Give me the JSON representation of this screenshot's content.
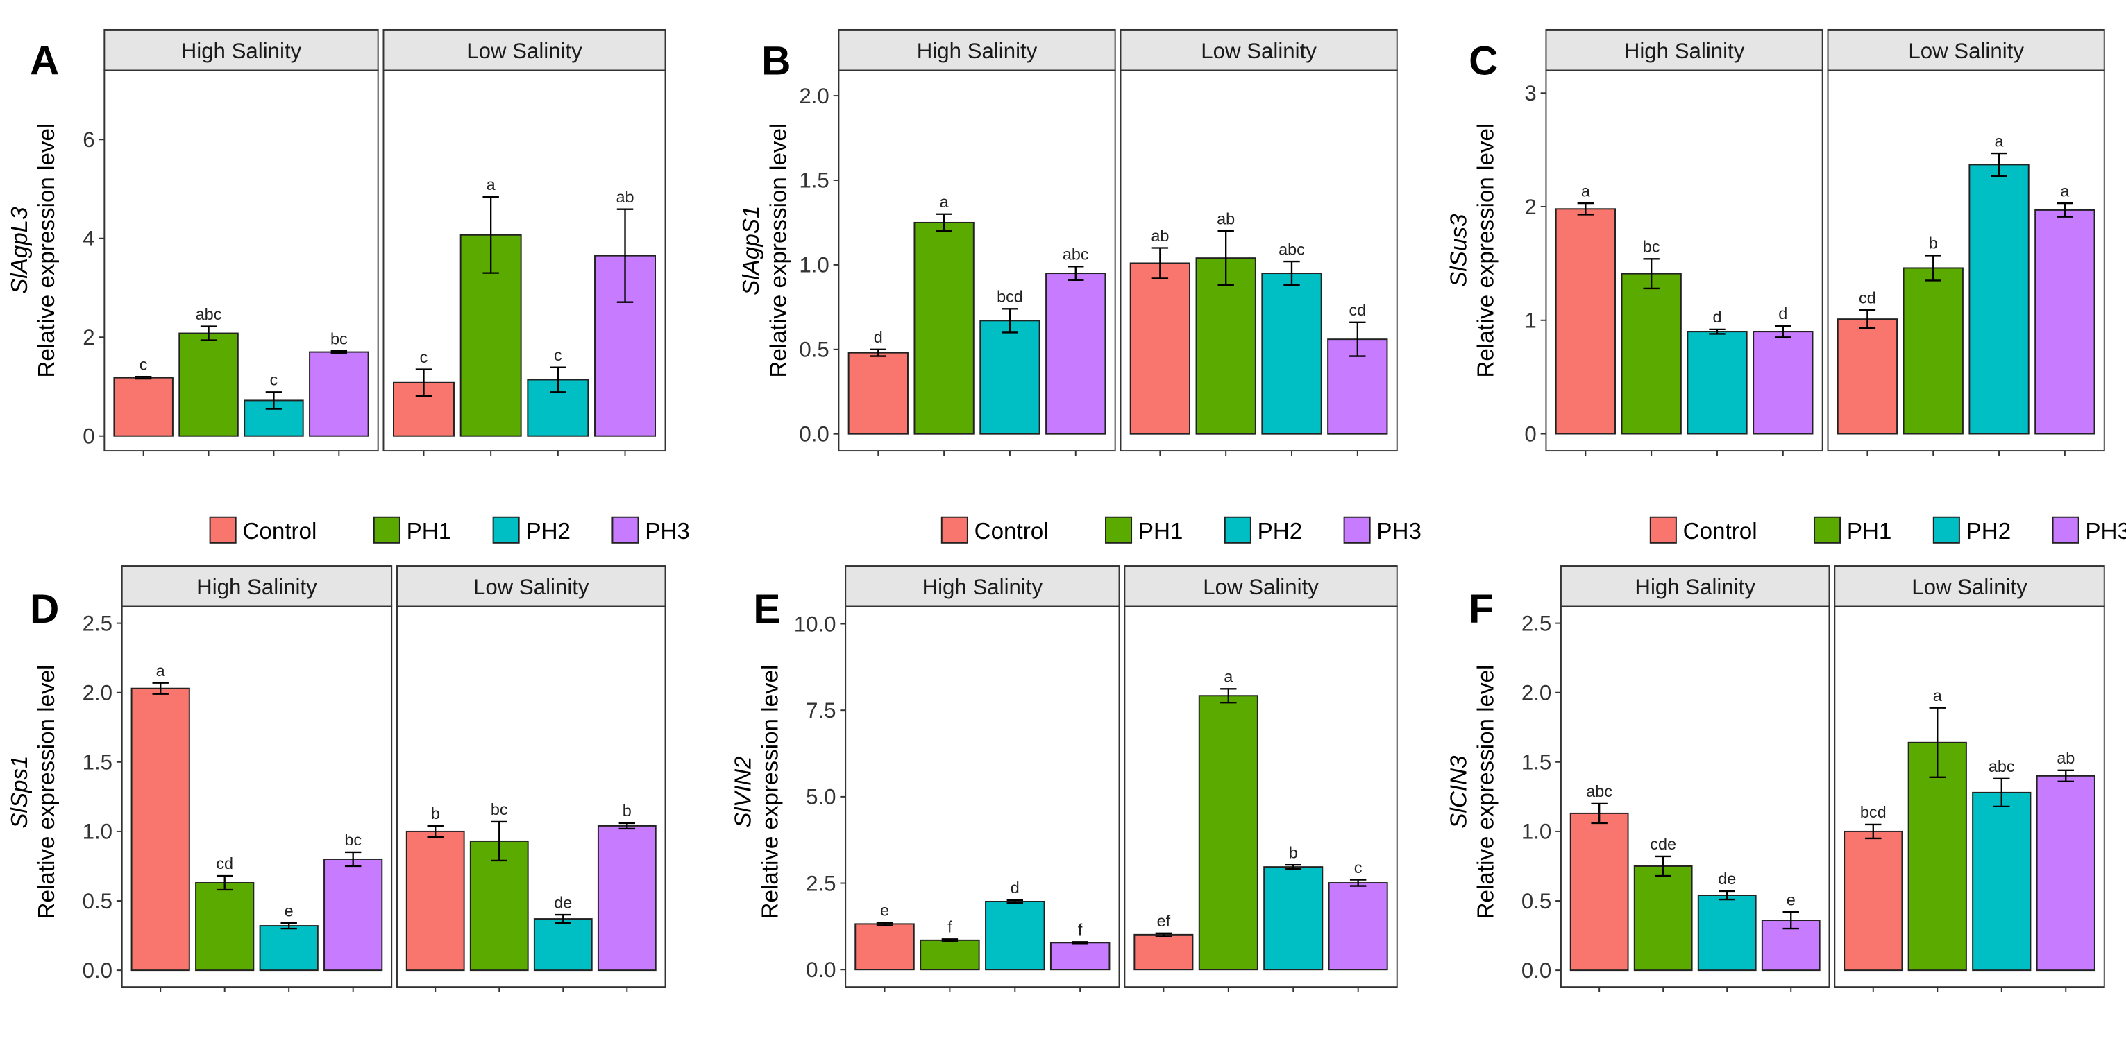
{
  "figure": {
    "ylabel": "Relative expression level",
    "strips": [
      "High Salinity",
      "Low Salinity"
    ],
    "legend": [
      "Control",
      "PH1",
      "PH2",
      "PH3"
    ],
    "colors": {
      "Control": "#F8766D",
      "PH1": "#5BAA00",
      "PH2": "#00BFC4",
      "PH3": "#C77CFF",
      "strip_bg": "#E5E5E5"
    }
  },
  "chart_data": [
    {
      "type": "bar",
      "letter": "A",
      "gene": "SlAgpL3",
      "gene_prefix": "Sl",
      "gene_suffix": "AgpL3",
      "ylabel": "Relative expression level",
      "ylim": [
        -0.3,
        7.4
      ],
      "ticks": [
        "0",
        "2",
        "4",
        "6"
      ],
      "tick_values": [
        0,
        2,
        4,
        6
      ],
      "facets": [
        "High Salinity",
        "Low Salinity"
      ],
      "categories": [
        "Control",
        "PH1",
        "PH2",
        "PH3"
      ],
      "series": [
        {
          "facet": "High Salinity",
          "values": [
            1.18,
            2.08,
            0.72,
            1.7
          ],
          "errors": [
            0.02,
            0.14,
            0.17,
            0.02
          ],
          "labels": [
            "c",
            "abc",
            "c",
            "bc"
          ]
        },
        {
          "facet": "Low Salinity",
          "values": [
            1.08,
            4.07,
            1.14,
            3.65
          ],
          "errors": [
            0.27,
            0.77,
            0.25,
            0.94
          ],
          "labels": [
            "c",
            "a",
            "c",
            "ab"
          ]
        }
      ]
    },
    {
      "type": "bar",
      "letter": "B",
      "gene": "SlAgpS1",
      "gene_prefix": "Sl",
      "gene_suffix": "AgpS1",
      "ylabel": "Relative expression level",
      "ylim": [
        -0.1,
        2.15
      ],
      "ticks": [
        "0.0",
        "0.5",
        "1.0",
        "1.5",
        "2.0"
      ],
      "tick_values": [
        0,
        0.5,
        1,
        1.5,
        2
      ],
      "facets": [
        "High Salinity",
        "Low Salinity"
      ],
      "categories": [
        "Control",
        "PH1",
        "PH2",
        "PH3"
      ],
      "series": [
        {
          "facet": "High Salinity",
          "values": [
            0.48,
            1.25,
            0.67,
            0.95
          ],
          "errors": [
            0.02,
            0.05,
            0.07,
            0.04
          ],
          "labels": [
            "d",
            "a",
            "bcd",
            "abc"
          ]
        },
        {
          "facet": "Low Salinity",
          "values": [
            1.01,
            1.04,
            0.95,
            0.56
          ],
          "errors": [
            0.09,
            0.16,
            0.07,
            0.1
          ],
          "labels": [
            "ab",
            "ab",
            "abc",
            "cd"
          ]
        }
      ]
    },
    {
      "type": "bar",
      "letter": "C",
      "gene": "SlSus3",
      "gene_prefix": "Sl",
      "gene_suffix": "Sus3",
      "ylabel": "Relative expression level",
      "ylim": [
        -0.15,
        3.2
      ],
      "ticks": [
        "0",
        "1",
        "2",
        "3"
      ],
      "tick_values": [
        0,
        1,
        2,
        3
      ],
      "facets": [
        "High Salinity",
        "Low Salinity"
      ],
      "categories": [
        "Control",
        "PH1",
        "PH2",
        "PH3"
      ],
      "series": [
        {
          "facet": "High Salinity",
          "values": [
            1.98,
            1.41,
            0.9,
            0.9
          ],
          "errors": [
            0.05,
            0.13,
            0.02,
            0.05
          ],
          "labels": [
            "a",
            "bc",
            "d",
            "d"
          ]
        },
        {
          "facet": "Low Salinity",
          "values": [
            1.01,
            1.46,
            2.37,
            1.97
          ],
          "errors": [
            0.08,
            0.11,
            0.1,
            0.06
          ],
          "labels": [
            "cd",
            "b",
            "a",
            "a"
          ]
        }
      ]
    },
    {
      "type": "bar",
      "letter": "D",
      "gene": "SlSps1",
      "gene_prefix": "Sl",
      "gene_suffix": "Sps1",
      "ylabel": "Relative expression level",
      "ylim": [
        -0.12,
        2.62
      ],
      "ticks": [
        "0.0",
        "0.5",
        "1.0",
        "1.5",
        "2.0",
        "2.5"
      ],
      "tick_values": [
        0,
        0.5,
        1,
        1.5,
        2,
        2.5
      ],
      "facets": [
        "High Salinity",
        "Low Salinity"
      ],
      "categories": [
        "Control",
        "PH1",
        "PH2",
        "PH3"
      ],
      "series": [
        {
          "facet": "High Salinity",
          "values": [
            2.03,
            0.63,
            0.32,
            0.8
          ],
          "errors": [
            0.04,
            0.05,
            0.02,
            0.05
          ],
          "labels": [
            "a",
            "cd",
            "e",
            "bc"
          ]
        },
        {
          "facet": "Low Salinity",
          "values": [
            1.0,
            0.93,
            0.37,
            1.04
          ],
          "errors": [
            0.04,
            0.14,
            0.03,
            0.02
          ],
          "labels": [
            "b",
            "bc",
            "de",
            "b"
          ]
        }
      ]
    },
    {
      "type": "bar",
      "letter": "E",
      "gene": "SlVIN2",
      "gene_prefix": "Sl",
      "gene_suffix": "VIN2",
      "ylabel": "Relative expression level",
      "ylim": [
        -0.5,
        10.5
      ],
      "ticks": [
        "0.0",
        "2.5",
        "5.0",
        "7.5",
        "10.0"
      ],
      "tick_values": [
        0,
        2.5,
        5,
        7.5,
        10
      ],
      "facets": [
        "High Salinity",
        "Low Salinity"
      ],
      "categories": [
        "Control",
        "PH1",
        "PH2",
        "PH3"
      ],
      "series": [
        {
          "facet": "High Salinity",
          "values": [
            1.32,
            0.85,
            1.97,
            0.78
          ],
          "errors": [
            0.04,
            0.03,
            0.04,
            0.02
          ],
          "labels": [
            "e",
            "f",
            "d",
            "f"
          ]
        },
        {
          "facet": "Low Salinity",
          "values": [
            1.01,
            7.92,
            2.97,
            2.51
          ],
          "errors": [
            0.04,
            0.2,
            0.06,
            0.09
          ],
          "labels": [
            "ef",
            "a",
            "b",
            "c"
          ]
        }
      ]
    },
    {
      "type": "bar",
      "letter": "F",
      "gene": "SlCIN3",
      "gene_prefix": "Sl",
      "gene_suffix": "CIN3",
      "ylabel": "Relative expression level",
      "ylim": [
        -0.12,
        2.62
      ],
      "ticks": [
        "0.0",
        "0.5",
        "1.0",
        "1.5",
        "2.0",
        "2.5"
      ],
      "tick_values": [
        0,
        0.5,
        1,
        1.5,
        2,
        2.5
      ],
      "facets": [
        "High Salinity",
        "Low Salinity"
      ],
      "categories": [
        "Control",
        "PH1",
        "PH2",
        "PH3"
      ],
      "series": [
        {
          "facet": "High Salinity",
          "values": [
            1.13,
            0.75,
            0.54,
            0.36
          ],
          "errors": [
            0.07,
            0.07,
            0.03,
            0.06
          ],
          "labels": [
            "abc",
            "cde",
            "de",
            "e"
          ]
        },
        {
          "facet": "Low Salinity",
          "values": [
            1.0,
            1.64,
            1.28,
            1.4
          ],
          "errors": [
            0.05,
            0.25,
            0.1,
            0.04
          ],
          "labels": [
            "bcd",
            "a",
            "abc",
            "ab"
          ]
        }
      ]
    }
  ]
}
